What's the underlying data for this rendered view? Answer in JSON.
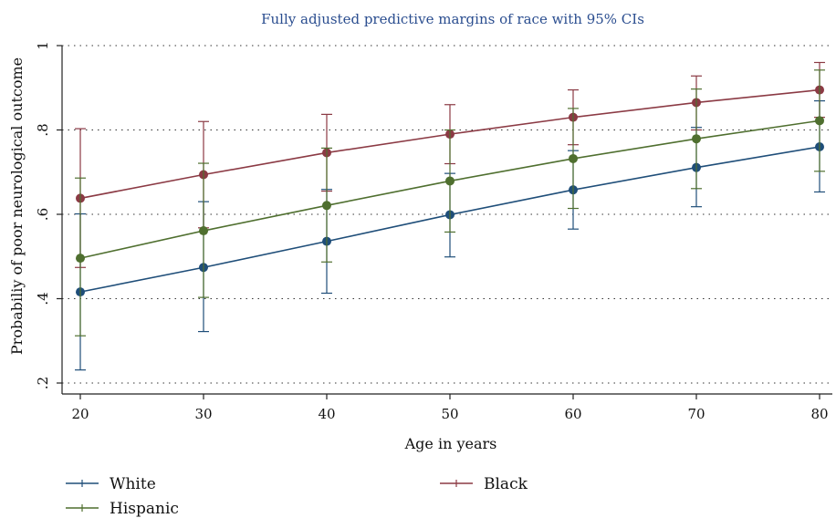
{
  "chart_data": {
    "type": "line",
    "title": "Fully adjusted predictive margins of race with 95% CIs",
    "xlabel": "Age in years",
    "ylabel": "Probabiliy of poor neurological outcome",
    "x": [
      20,
      30,
      40,
      50,
      60,
      70,
      80
    ],
    "xlim": [
      20,
      80
    ],
    "ylim": [
      0.2,
      1.0
    ],
    "xticks": [
      "20",
      "30",
      "40",
      "50",
      "60",
      "70",
      "80"
    ],
    "yticks": [
      {
        "value": 0.2,
        "label": ".2"
      },
      {
        "value": 0.4,
        "label": ".4"
      },
      {
        "value": 0.6,
        "label": ".6"
      },
      {
        "value": 0.8,
        "label": ".8"
      },
      {
        "value": 1.0,
        "label": "1"
      }
    ],
    "grid": "horizontal dotted",
    "legend_position": "bottom",
    "series": [
      {
        "name": "White",
        "color": "#1f4e79",
        "values": [
          0.416,
          0.474,
          0.536,
          0.599,
          0.658,
          0.711,
          0.76
        ],
        "ci_low": [
          0.231,
          0.322,
          0.413,
          0.499,
          0.565,
          0.618,
          0.653
        ],
        "ci_high": [
          0.601,
          0.63,
          0.659,
          0.697,
          0.751,
          0.806,
          0.869
        ]
      },
      {
        "name": "Black",
        "color": "#8b3a44",
        "values": [
          0.638,
          0.694,
          0.746,
          0.79,
          0.83,
          0.865,
          0.895
        ],
        "ci_low": [
          0.474,
          0.568,
          0.655,
          0.72,
          0.765,
          0.8,
          0.83
        ],
        "ci_high": [
          0.803,
          0.82,
          0.837,
          0.86,
          0.895,
          0.928,
          0.96
        ]
      },
      {
        "name": "Hispanic",
        "color": "#4f6f2f",
        "values": [
          0.496,
          0.561,
          0.621,
          0.679,
          0.732,
          0.779,
          0.822
        ],
        "ci_low": [
          0.312,
          0.403,
          0.487,
          0.558,
          0.614,
          0.661,
          0.702
        ],
        "ci_high": [
          0.686,
          0.721,
          0.757,
          0.8,
          0.851,
          0.897,
          0.942
        ]
      }
    ]
  }
}
